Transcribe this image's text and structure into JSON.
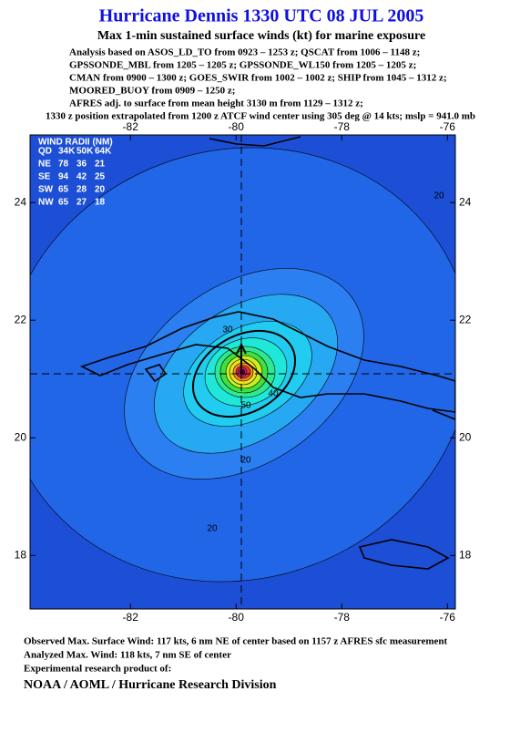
{
  "header": {
    "title": "Hurricane Dennis 1330 UTC 08 JUL 2005",
    "subtitle": "Max 1-min sustained surface winds (kt) for marine exposure",
    "analysis": [
      "Analysis based on  ASOS_LD_TO from 0923 – 1253 z;  QSCAT from 1006 – 1148 z;",
      "GPSSONDE_MBL from 1205 – 1205 z;  GPSSONDE_WL150 from 1205 – 1205 z;",
      "CMAN from 0900 – 1300 z;  GOES_SWIR from 1002 – 1002 z;  SHIP from 1045 – 1312 z;",
      "MOORED_BUOY from 0909 – 1250 z;",
      "AFRES adj. to surface from mean height 3130 m from 1129 – 1312 z;",
      "1330 z position extrapolated from 1200 z ATCF wind center using 305 deg @ 14 kts; mslp = 941.0 mb"
    ]
  },
  "map": {
    "xlim": [
      -83.9,
      -75.85
    ],
    "ylim": [
      17.09,
      25.15
    ],
    "xticks": [
      -82,
      -80,
      -78,
      -76
    ],
    "yticks": [
      18,
      20,
      22,
      24
    ],
    "contour_labels": [
      20,
      30,
      40,
      50,
      20,
      20
    ]
  },
  "wind_radii": {
    "title": "WIND RADII (NM)",
    "columns": [
      "QD",
      "34K",
      "50K",
      "64K"
    ],
    "rows": [
      [
        "NE",
        78,
        36,
        21
      ],
      [
        "SE",
        94,
        42,
        25
      ],
      [
        "SW",
        65,
        28,
        20
      ],
      [
        "NW",
        65,
        27,
        18
      ]
    ]
  },
  "footer": {
    "lines": [
      "Observed Max. Surface Wind: 117 kts, 6 nm NE of center based on 1157 z AFRES sfc measurement",
      "Analyzed Max. Wind: 118 kts, 7 nm SE of center",
      "Experimental research product of:"
    ],
    "org": "NOAA / AOML / Hurricane Research Division"
  }
}
